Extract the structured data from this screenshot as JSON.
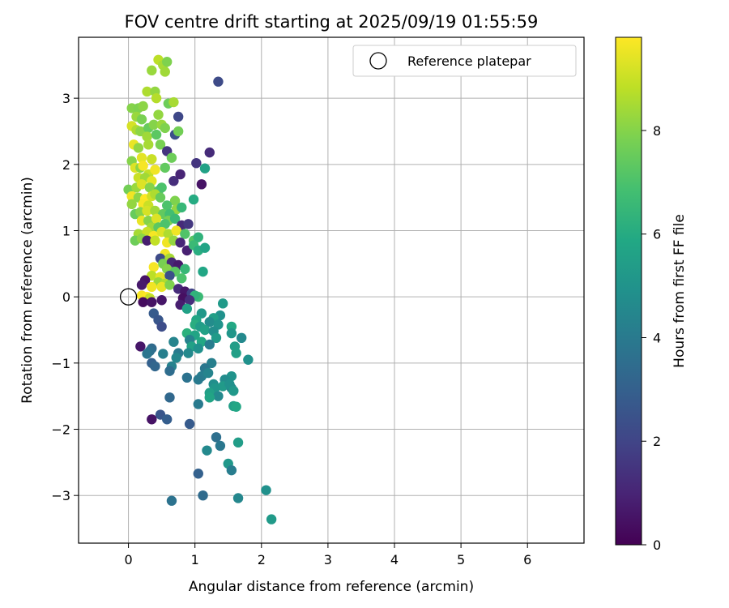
{
  "chart_data": {
    "type": "scatter",
    "title": "FOV centre drift starting at 2025/09/19 01:55:59",
    "xlabel": "Angular distance from reference (arcmin)",
    "ylabel": "Rotation from reference (arcmin)",
    "xlim": [
      -0.75,
      6.85
    ],
    "ylim": [
      -3.72,
      3.92
    ],
    "xticks": [
      0,
      1,
      2,
      3,
      4,
      5,
      6
    ],
    "yticks": [
      -3,
      -2,
      -1,
      0,
      1,
      2,
      3
    ],
    "grid": true,
    "legend": {
      "position": "top-right",
      "entries": [
        "Reference platepar"
      ]
    },
    "reference_point": {
      "x": 0,
      "y": 0,
      "label": "Reference platepar"
    },
    "colorbar": {
      "label": "Hours from first FF file",
      "range": [
        0,
        9.8
      ],
      "ticks": [
        0,
        2,
        4,
        6,
        8
      ],
      "colormap": "viridis"
    },
    "points": [
      {
        "x": 0.35,
        "y": 3.42,
        "h": 8.3
      },
      {
        "x": 0.45,
        "y": 3.58,
        "h": 8.8
      },
      {
        "x": 0.52,
        "y": 3.5,
        "h": 8.5
      },
      {
        "x": 0.58,
        "y": 3.55,
        "h": 7.9
      },
      {
        "x": 0.55,
        "y": 3.4,
        "h": 8.4
      },
      {
        "x": 1.35,
        "y": 3.25,
        "h": 2.2
      },
      {
        "x": 0.28,
        "y": 3.1,
        "h": 8.6
      },
      {
        "x": 0.4,
        "y": 3.1,
        "h": 8.2
      },
      {
        "x": 0.42,
        "y": 3.0,
        "h": 8.7
      },
      {
        "x": 0.6,
        "y": 2.92,
        "h": 7.6
      },
      {
        "x": 0.68,
        "y": 2.94,
        "h": 8.5
      },
      {
        "x": 0.05,
        "y": 2.85,
        "h": 8.0
      },
      {
        "x": 0.15,
        "y": 2.85,
        "h": 7.9
      },
      {
        "x": 0.22,
        "y": 2.88,
        "h": 8.1
      },
      {
        "x": 0.12,
        "y": 2.72,
        "h": 8.3
      },
      {
        "x": 0.75,
        "y": 2.72,
        "h": 2.1
      },
      {
        "x": 0.2,
        "y": 2.68,
        "h": 7.8
      },
      {
        "x": 0.45,
        "y": 2.75,
        "h": 8.2
      },
      {
        "x": 0.05,
        "y": 2.58,
        "h": 9.2
      },
      {
        "x": 0.12,
        "y": 2.52,
        "h": 8.6
      },
      {
        "x": 0.18,
        "y": 2.5,
        "h": 8.1
      },
      {
        "x": 0.3,
        "y": 2.55,
        "h": 7.5
      },
      {
        "x": 0.38,
        "y": 2.6,
        "h": 8.0
      },
      {
        "x": 0.5,
        "y": 2.6,
        "h": 8.3
      },
      {
        "x": 0.55,
        "y": 2.55,
        "h": 7.9
      },
      {
        "x": 0.7,
        "y": 2.45,
        "h": 2.4
      },
      {
        "x": 0.75,
        "y": 2.5,
        "h": 7.7
      },
      {
        "x": 0.28,
        "y": 2.42,
        "h": 8.4
      },
      {
        "x": 0.42,
        "y": 2.45,
        "h": 7.3
      },
      {
        "x": 0.08,
        "y": 2.3,
        "h": 9.5
      },
      {
        "x": 0.15,
        "y": 2.25,
        "h": 8.2
      },
      {
        "x": 0.3,
        "y": 2.3,
        "h": 8.5
      },
      {
        "x": 0.48,
        "y": 2.3,
        "h": 7.8
      },
      {
        "x": 0.58,
        "y": 2.2,
        "h": 1.5
      },
      {
        "x": 1.22,
        "y": 2.18,
        "h": 1.2
      },
      {
        "x": 0.05,
        "y": 2.05,
        "h": 8.0
      },
      {
        "x": 0.2,
        "y": 2.1,
        "h": 9.4
      },
      {
        "x": 0.35,
        "y": 2.08,
        "h": 9.0
      },
      {
        "x": 0.65,
        "y": 2.1,
        "h": 7.6
      },
      {
        "x": 1.02,
        "y": 2.02,
        "h": 1.5
      },
      {
        "x": 0.1,
        "y": 1.95,
        "h": 9.3
      },
      {
        "x": 0.18,
        "y": 1.95,
        "h": 8.1
      },
      {
        "x": 0.22,
        "y": 1.98,
        "h": 9.7
      },
      {
        "x": 0.3,
        "y": 1.85,
        "h": 8.9
      },
      {
        "x": 0.4,
        "y": 1.92,
        "h": 9.6
      },
      {
        "x": 0.55,
        "y": 1.95,
        "h": 7.4
      },
      {
        "x": 1.15,
        "y": 1.94,
        "h": 5.6
      },
      {
        "x": 0.15,
        "y": 1.8,
        "h": 9.0
      },
      {
        "x": 0.25,
        "y": 1.8,
        "h": 8.4
      },
      {
        "x": 0.35,
        "y": 1.75,
        "h": 9.4
      },
      {
        "x": 0.68,
        "y": 1.75,
        "h": 1.3
      },
      {
        "x": 0.78,
        "y": 1.85,
        "h": 1.0
      },
      {
        "x": 1.1,
        "y": 1.7,
        "h": 0.5
      },
      {
        "x": 0.0,
        "y": 1.62,
        "h": 7.7
      },
      {
        "x": 0.12,
        "y": 1.65,
        "h": 8.3
      },
      {
        "x": 0.2,
        "y": 1.7,
        "h": 9.3
      },
      {
        "x": 0.32,
        "y": 1.65,
        "h": 8.0
      },
      {
        "x": 0.45,
        "y": 1.6,
        "h": 7.2
      },
      {
        "x": 0.5,
        "y": 1.65,
        "h": 7.0
      },
      {
        "x": 0.05,
        "y": 1.52,
        "h": 9.6
      },
      {
        "x": 0.15,
        "y": 1.5,
        "h": 8.1
      },
      {
        "x": 0.25,
        "y": 1.48,
        "h": 9.8
      },
      {
        "x": 0.35,
        "y": 1.52,
        "h": 9.1
      },
      {
        "x": 0.4,
        "y": 1.55,
        "h": 8.6
      },
      {
        "x": 0.48,
        "y": 1.5,
        "h": 7.5
      },
      {
        "x": 0.7,
        "y": 1.45,
        "h": 7.9
      },
      {
        "x": 0.98,
        "y": 1.47,
        "h": 6.0
      },
      {
        "x": 0.05,
        "y": 1.4,
        "h": 8.2
      },
      {
        "x": 0.22,
        "y": 1.4,
        "h": 9.7
      },
      {
        "x": 0.3,
        "y": 1.38,
        "h": 9.0
      },
      {
        "x": 0.58,
        "y": 1.38,
        "h": 7.0
      },
      {
        "x": 0.72,
        "y": 1.32,
        "h": 8.2
      },
      {
        "x": 0.1,
        "y": 1.25,
        "h": 7.5
      },
      {
        "x": 0.18,
        "y": 1.28,
        "h": 8.0
      },
      {
        "x": 0.28,
        "y": 1.3,
        "h": 9.2
      },
      {
        "x": 0.4,
        "y": 1.3,
        "h": 8.4
      },
      {
        "x": 0.52,
        "y": 1.25,
        "h": 7.4
      },
      {
        "x": 0.62,
        "y": 1.25,
        "h": 6.8
      },
      {
        "x": 0.8,
        "y": 1.35,
        "h": 6.5
      },
      {
        "x": 0.2,
        "y": 1.15,
        "h": 9.5
      },
      {
        "x": 0.3,
        "y": 1.15,
        "h": 8.0
      },
      {
        "x": 0.42,
        "y": 1.18,
        "h": 9.3
      },
      {
        "x": 0.6,
        "y": 1.15,
        "h": 7.8
      },
      {
        "x": 0.7,
        "y": 1.18,
        "h": 6.6
      },
      {
        "x": 0.35,
        "y": 1.05,
        "h": 8.4
      },
      {
        "x": 0.45,
        "y": 1.05,
        "h": 7.3
      },
      {
        "x": 0.55,
        "y": 1.1,
        "h": 7.0
      },
      {
        "x": 0.8,
        "y": 1.08,
        "h": 1.2
      },
      {
        "x": 0.9,
        "y": 1.1,
        "h": 1.6
      },
      {
        "x": 0.15,
        "y": 0.95,
        "h": 8.5
      },
      {
        "x": 0.28,
        "y": 0.98,
        "h": 9.0
      },
      {
        "x": 0.38,
        "y": 0.92,
        "h": 9.7
      },
      {
        "x": 0.5,
        "y": 0.98,
        "h": 9.3
      },
      {
        "x": 0.6,
        "y": 0.95,
        "h": 8.6
      },
      {
        "x": 0.72,
        "y": 1.0,
        "h": 9.6
      },
      {
        "x": 0.85,
        "y": 0.95,
        "h": 7.1
      },
      {
        "x": 0.1,
        "y": 0.85,
        "h": 7.6
      },
      {
        "x": 0.2,
        "y": 0.88,
        "h": 8.1
      },
      {
        "x": 0.28,
        "y": 0.85,
        "h": 0.8
      },
      {
        "x": 0.4,
        "y": 0.85,
        "h": 8.9
      },
      {
        "x": 0.58,
        "y": 0.82,
        "h": 9.6
      },
      {
        "x": 0.68,
        "y": 0.85,
        "h": 8.2
      },
      {
        "x": 0.78,
        "y": 0.82,
        "h": 1.1
      },
      {
        "x": 0.98,
        "y": 0.85,
        "h": 7.2
      },
      {
        "x": 1.05,
        "y": 0.9,
        "h": 6.3
      },
      {
        "x": 0.88,
        "y": 0.7,
        "h": 0.9
      },
      {
        "x": 0.98,
        "y": 0.78,
        "h": 6.6
      },
      {
        "x": 1.05,
        "y": 0.7,
        "h": 6.1
      },
      {
        "x": 1.15,
        "y": 0.74,
        "h": 5.7
      },
      {
        "x": 0.55,
        "y": 0.65,
        "h": 9.6
      },
      {
        "x": 0.48,
        "y": 0.58,
        "h": 2.2
      },
      {
        "x": 0.62,
        "y": 0.58,
        "h": 8.5
      },
      {
        "x": 0.52,
        "y": 0.5,
        "h": 7.8
      },
      {
        "x": 0.65,
        "y": 0.52,
        "h": 1.1
      },
      {
        "x": 0.75,
        "y": 0.48,
        "h": 0.7
      },
      {
        "x": 0.38,
        "y": 0.45,
        "h": 9.7
      },
      {
        "x": 0.58,
        "y": 0.42,
        "h": 8.0
      },
      {
        "x": 0.7,
        "y": 0.38,
        "h": 7.3
      },
      {
        "x": 0.85,
        "y": 0.42,
        "h": 6.5
      },
      {
        "x": 1.12,
        "y": 0.38,
        "h": 5.8
      },
      {
        "x": 0.35,
        "y": 0.32,
        "h": 8.8
      },
      {
        "x": 0.48,
        "y": 0.3,
        "h": 9.4
      },
      {
        "x": 0.62,
        "y": 0.32,
        "h": 2.4
      },
      {
        "x": 0.8,
        "y": 0.28,
        "h": 7.0
      },
      {
        "x": 0.45,
        "y": 0.22,
        "h": 8.3
      },
      {
        "x": 0.55,
        "y": 0.2,
        "h": 8.6
      },
      {
        "x": 0.25,
        "y": 0.25,
        "h": 0.5
      },
      {
        "x": 0.2,
        "y": 0.18,
        "h": 0.7
      },
      {
        "x": 0.35,
        "y": 0.15,
        "h": 9.6
      },
      {
        "x": 0.5,
        "y": 0.15,
        "h": 9.5
      },
      {
        "x": 0.62,
        "y": 0.18,
        "h": 7.9
      },
      {
        "x": 0.75,
        "y": 0.12,
        "h": 1.2
      },
      {
        "x": 0.85,
        "y": 0.08,
        "h": 0.6
      },
      {
        "x": 0.95,
        "y": 0.05,
        "h": 1.9
      },
      {
        "x": 1.05,
        "y": 0.0,
        "h": 6.6
      },
      {
        "x": 1.0,
        "y": 0.02,
        "h": 6.3
      },
      {
        "x": 0.82,
        "y": -0.02,
        "h": 0.4
      },
      {
        "x": 0.92,
        "y": -0.05,
        "h": 1.3
      },
      {
        "x": 0.2,
        "y": 0.02,
        "h": 9.7
      },
      {
        "x": 0.28,
        "y": 0.0,
        "h": 9.8
      },
      {
        "x": 0.32,
        "y": -0.02,
        "h": 8.9
      },
      {
        "x": 0.22,
        "y": -0.08,
        "h": 0.3
      },
      {
        "x": 0.35,
        "y": -0.08,
        "h": 0.5
      },
      {
        "x": 0.5,
        "y": -0.05,
        "h": 0.6
      },
      {
        "x": 0.78,
        "y": -0.12,
        "h": 0.8
      },
      {
        "x": 1.42,
        "y": -0.1,
        "h": 5.3
      },
      {
        "x": 0.88,
        "y": -0.18,
        "h": 5.6
      },
      {
        "x": 0.38,
        "y": -0.25,
        "h": 2.8
      },
      {
        "x": 1.1,
        "y": -0.25,
        "h": 5.2
      },
      {
        "x": 1.38,
        "y": -0.28,
        "h": 4.9
      },
      {
        "x": 1.28,
        "y": -0.32,
        "h": 5.5
      },
      {
        "x": 1.02,
        "y": -0.35,
        "h": 5.8
      },
      {
        "x": 0.45,
        "y": -0.35,
        "h": 2.6
      },
      {
        "x": 1.22,
        "y": -0.38,
        "h": 4.7
      },
      {
        "x": 1.35,
        "y": -0.42,
        "h": 5.0
      },
      {
        "x": 0.5,
        "y": -0.45,
        "h": 2.3
      },
      {
        "x": 1.0,
        "y": -0.42,
        "h": 6.1
      },
      {
        "x": 1.08,
        "y": -0.45,
        "h": 5.4
      },
      {
        "x": 1.55,
        "y": -0.45,
        "h": 5.9
      },
      {
        "x": 1.15,
        "y": -0.5,
        "h": 5.6
      },
      {
        "x": 1.28,
        "y": -0.52,
        "h": 4.8
      },
      {
        "x": 0.88,
        "y": -0.55,
        "h": 6.2
      },
      {
        "x": 1.0,
        "y": -0.58,
        "h": 5.7
      },
      {
        "x": 1.55,
        "y": -0.55,
        "h": 5.1
      },
      {
        "x": 1.7,
        "y": -0.62,
        "h": 4.6
      },
      {
        "x": 1.32,
        "y": -0.62,
        "h": 5.3
      },
      {
        "x": 0.92,
        "y": -0.65,
        "h": 4.3
      },
      {
        "x": 1.1,
        "y": -0.68,
        "h": 5.9
      },
      {
        "x": 0.68,
        "y": -0.68,
        "h": 4.4
      },
      {
        "x": 1.22,
        "y": -0.72,
        "h": 4.1
      },
      {
        "x": 0.95,
        "y": -0.75,
        "h": 5.6
      },
      {
        "x": 1.6,
        "y": -0.75,
        "h": 5.4
      },
      {
        "x": 0.18,
        "y": -0.75,
        "h": 0.6
      },
      {
        "x": 0.35,
        "y": -0.78,
        "h": 3.4
      },
      {
        "x": 1.05,
        "y": -0.78,
        "h": 4.9
      },
      {
        "x": 0.32,
        "y": -0.82,
        "h": 3.6
      },
      {
        "x": 0.75,
        "y": -0.85,
        "h": 4.0
      },
      {
        "x": 0.28,
        "y": -0.86,
        "h": 3.8
      },
      {
        "x": 0.52,
        "y": -0.86,
        "h": 4.2
      },
      {
        "x": 0.9,
        "y": -0.85,
        "h": 4.6
      },
      {
        "x": 1.62,
        "y": -0.85,
        "h": 5.5
      },
      {
        "x": 0.72,
        "y": -0.92,
        "h": 4.5
      },
      {
        "x": 1.8,
        "y": -0.95,
        "h": 4.9
      },
      {
        "x": 0.35,
        "y": -1.0,
        "h": 3.0
      },
      {
        "x": 1.25,
        "y": -1.0,
        "h": 4.2
      },
      {
        "x": 0.4,
        "y": -1.05,
        "h": 3.2
      },
      {
        "x": 0.65,
        "y": -1.05,
        "h": 4.3
      },
      {
        "x": 1.15,
        "y": -1.08,
        "h": 3.9
      },
      {
        "x": 0.62,
        "y": -1.12,
        "h": 3.5
      },
      {
        "x": 0.88,
        "y": -1.22,
        "h": 3.7
      },
      {
        "x": 1.1,
        "y": -1.2,
        "h": 4.1
      },
      {
        "x": 1.2,
        "y": -1.15,
        "h": 4.4
      },
      {
        "x": 1.05,
        "y": -1.25,
        "h": 4.0
      },
      {
        "x": 1.55,
        "y": -1.2,
        "h": 5.0
      },
      {
        "x": 1.45,
        "y": -1.25,
        "h": 4.7
      },
      {
        "x": 1.28,
        "y": -1.32,
        "h": 4.8
      },
      {
        "x": 1.42,
        "y": -1.35,
        "h": 5.3
      },
      {
        "x": 1.55,
        "y": -1.38,
        "h": 4.5
      },
      {
        "x": 1.3,
        "y": -1.38,
        "h": 5.1
      },
      {
        "x": 1.52,
        "y": -1.32,
        "h": 4.9
      },
      {
        "x": 1.58,
        "y": -1.42,
        "h": 5.2
      },
      {
        "x": 1.22,
        "y": -1.45,
        "h": 5.5
      },
      {
        "x": 1.35,
        "y": -1.5,
        "h": 4.6
      },
      {
        "x": 1.22,
        "y": -1.52,
        "h": 5.7
      },
      {
        "x": 0.62,
        "y": -1.52,
        "h": 3.3
      },
      {
        "x": 1.05,
        "y": -1.62,
        "h": 4.0
      },
      {
        "x": 1.58,
        "y": -1.65,
        "h": 5.5
      },
      {
        "x": 1.62,
        "y": -1.66,
        "h": 5.8
      },
      {
        "x": 0.48,
        "y": -1.78,
        "h": 2.6
      },
      {
        "x": 0.58,
        "y": -1.85,
        "h": 2.9
      },
      {
        "x": 0.35,
        "y": -1.85,
        "h": 0.5
      },
      {
        "x": 0.92,
        "y": -1.92,
        "h": 2.8
      },
      {
        "x": 1.32,
        "y": -2.12,
        "h": 3.6
      },
      {
        "x": 1.65,
        "y": -2.2,
        "h": 5.4
      },
      {
        "x": 1.38,
        "y": -2.25,
        "h": 3.9
      },
      {
        "x": 1.18,
        "y": -2.32,
        "h": 4.6
      },
      {
        "x": 1.5,
        "y": -2.52,
        "h": 5.2
      },
      {
        "x": 1.55,
        "y": -2.62,
        "h": 4.1
      },
      {
        "x": 1.05,
        "y": -2.67,
        "h": 3.0
      },
      {
        "x": 2.07,
        "y": -2.92,
        "h": 4.9
      },
      {
        "x": 1.12,
        "y": -3.0,
        "h": 3.4
      },
      {
        "x": 1.65,
        "y": -3.04,
        "h": 4.5
      },
      {
        "x": 0.65,
        "y": -3.08,
        "h": 3.7
      },
      {
        "x": 2.15,
        "y": -3.36,
        "h": 5.3
      }
    ]
  }
}
